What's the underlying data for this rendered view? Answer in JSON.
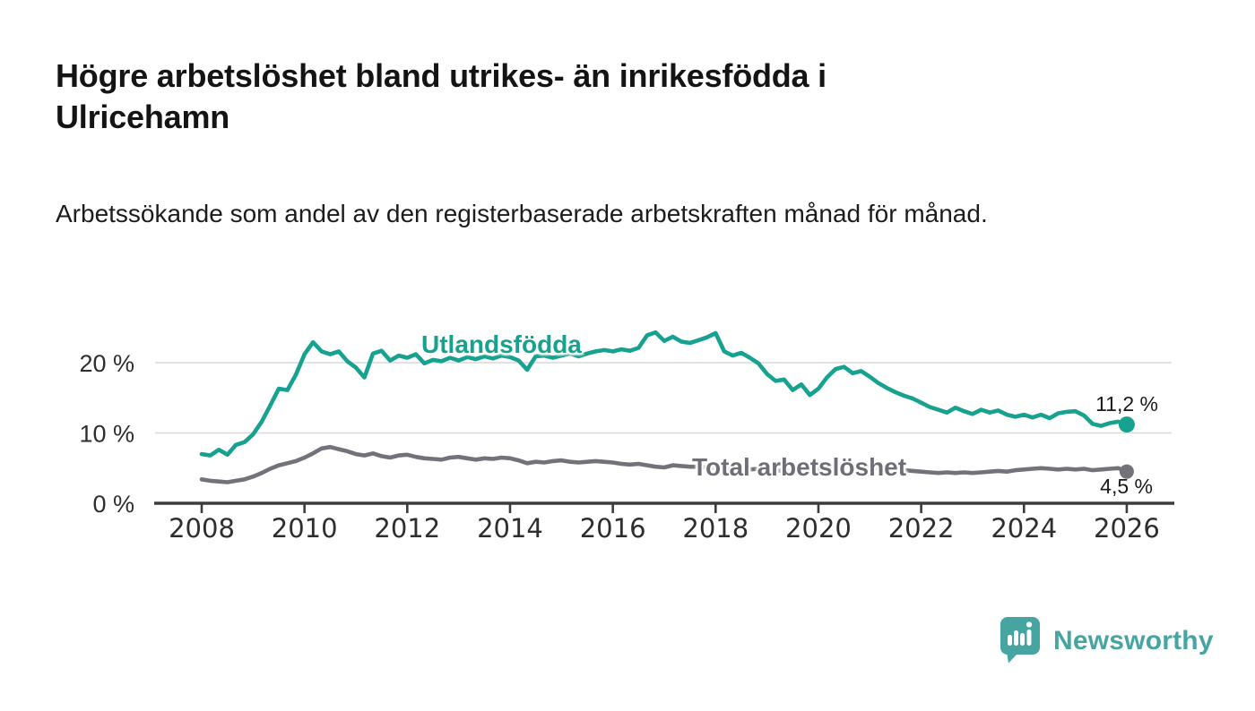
{
  "header": {
    "title": "Högre arbetslöshet bland utrikes- än inrikesfödda i Ulricehamn",
    "subtitle": "Arbetssökande som andel av den registerbaserade arbetskraften månad för månad."
  },
  "branding": {
    "name": "Newsworthy",
    "icon": "speech-bubble-bar-chart-icon",
    "color": "#46a5a1"
  },
  "colors": {
    "foreign_series": "#17a28f",
    "total_series": "#72727a",
    "grid": "#d9d9d9",
    "axis": "#3c3c3c",
    "tick_label": "#2e2e2e",
    "annotation": "#1a1a1a"
  },
  "chart_data": {
    "type": "line",
    "title": "Högre arbetslöshet bland utrikes- än inrikesfödda i Ulricehamn",
    "subtitle": "Arbetssökande som andel av den registerbaserade arbetskraften månad för månad.",
    "xlabel": "",
    "ylabel": "",
    "grid": "horizontal",
    "legend_position": "inline-labels",
    "x_start_year": 2008,
    "x_step_months": 2,
    "x_end_year": 2026,
    "xlim": [
      2007.1,
      2026.95
    ],
    "ylim": [
      0,
      26
    ],
    "x_ticks": [
      2008,
      2010,
      2012,
      2014,
      2016,
      2018,
      2020,
      2022,
      2024,
      2026
    ],
    "x_tick_labels": [
      "2008",
      "2010",
      "2012",
      "2014",
      "2016",
      "2018",
      "2020",
      "2022",
      "2024",
      "2026"
    ],
    "y_ticks": [
      0,
      10,
      20
    ],
    "y_tick_labels": [
      "0 %",
      "10 %",
      "20 %"
    ],
    "series": [
      {
        "name": "Utlandsfödda",
        "color": "#17a28f",
        "end_value": 11.2,
        "end_label": "11,2 %",
        "values": [
          7.0,
          6.8,
          7.6,
          6.9,
          8.3,
          8.7,
          9.8,
          11.6,
          13.9,
          16.3,
          16.1,
          18.3,
          21.2,
          22.9,
          21.6,
          21.2,
          21.6,
          20.2,
          19.3,
          17.9,
          21.3,
          21.7,
          20.3,
          21.0,
          20.7,
          21.2,
          19.9,
          20.4,
          20.2,
          20.7,
          20.3,
          20.8,
          20.5,
          20.9,
          20.6,
          21.0,
          20.8,
          20.3,
          19.0,
          20.9,
          21.0,
          20.7,
          21.0,
          21.3,
          20.9,
          21.3,
          21.6,
          21.8,
          21.6,
          21.9,
          21.7,
          22.1,
          23.9,
          24.3,
          23.1,
          23.7,
          23.0,
          22.8,
          23.2,
          23.6,
          24.2,
          21.6,
          21.0,
          21.4,
          20.7,
          19.9,
          18.4,
          17.4,
          17.6,
          16.1,
          16.9,
          15.4,
          16.3,
          17.9,
          19.1,
          19.4,
          18.5,
          18.8,
          18.0,
          17.1,
          16.4,
          15.8,
          15.3,
          14.9,
          14.3,
          13.7,
          13.3,
          12.9,
          13.6,
          13.1,
          12.7,
          13.3,
          12.9,
          13.2,
          12.6,
          12.3,
          12.6,
          12.2,
          12.6,
          12.1,
          12.8,
          13.0,
          13.1,
          12.5,
          11.3,
          11.0,
          11.4,
          11.6,
          11.2
        ]
      },
      {
        "name": "Total arbetslöshet",
        "color": "#72727a",
        "end_value": 4.5,
        "end_label": "4,5 %",
        "values": [
          3.4,
          3.2,
          3.1,
          3.0,
          3.2,
          3.4,
          3.8,
          4.3,
          4.9,
          5.4,
          5.7,
          6.0,
          6.5,
          7.1,
          7.8,
          8.0,
          7.7,
          7.4,
          7.0,
          6.8,
          7.1,
          6.7,
          6.5,
          6.8,
          6.9,
          6.6,
          6.4,
          6.3,
          6.2,
          6.5,
          6.6,
          6.4,
          6.2,
          6.4,
          6.3,
          6.5,
          6.4,
          6.1,
          5.7,
          5.9,
          5.8,
          6.0,
          6.1,
          5.9,
          5.8,
          5.9,
          6.0,
          5.9,
          5.8,
          5.6,
          5.5,
          5.6,
          5.4,
          5.2,
          5.1,
          5.4,
          5.3,
          5.2,
          5.2,
          5.1,
          5.0,
          4.9,
          5.0,
          4.9,
          4.8,
          4.9,
          4.8,
          4.7,
          4.6,
          4.7,
          4.6,
          4.7,
          4.7,
          5.0,
          5.3,
          5.4,
          5.3,
          5.2,
          5.1,
          5.0,
          4.9,
          4.8,
          4.7,
          4.6,
          4.5,
          4.4,
          4.3,
          4.4,
          4.3,
          4.4,
          4.3,
          4.4,
          4.5,
          4.6,
          4.5,
          4.7,
          4.8,
          4.9,
          5.0,
          4.9,
          4.8,
          4.9,
          4.8,
          4.9,
          4.7,
          4.8,
          4.9,
          5.0,
          4.5
        ]
      }
    ]
  }
}
